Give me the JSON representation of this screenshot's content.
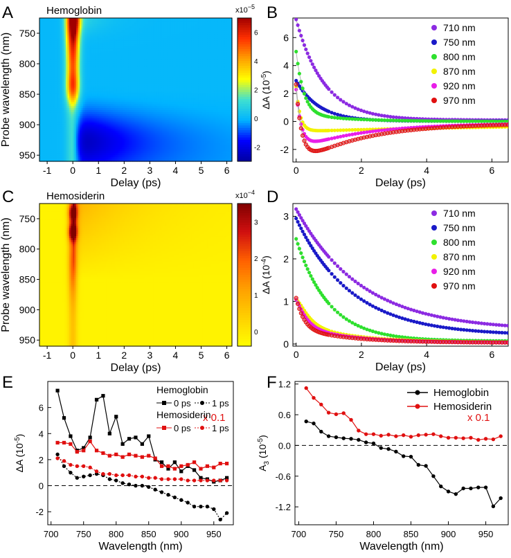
{
  "figure": {
    "panel_letters": [
      "A",
      "B",
      "C",
      "D",
      "E",
      "F"
    ]
  },
  "chart_data": [
    {
      "panel": "A",
      "type": "heatmap",
      "title": "Hemoglobin",
      "xlabel": "Delay (ps)",
      "ylabel": "Probe wavelength (nm)",
      "xlim": [
        -1.3,
        6.2
      ],
      "ylim": [
        960,
        725
      ],
      "xticks": [
        "-1",
        "0",
        "1",
        "2",
        "3",
        "4",
        "5",
        "6"
      ],
      "yticks": [
        "750",
        "800",
        "850",
        "900",
        "950"
      ],
      "colorbar": {
        "exponent_label": "x10",
        "exponent_power": "−5",
        "ticks": [
          "6",
          "4",
          "2",
          "0",
          "-2"
        ],
        "range": [
          -3.0,
          7.0
        ],
        "colors": [
          "#0000a0",
          "#0000ff",
          "#00b4ff",
          "#40e0d0",
          "#ffff00",
          "#ffa000",
          "#ff3000",
          "#a00000"
        ]
      }
    },
    {
      "panel": "B",
      "type": "scatter",
      "title": "",
      "xlabel": "Delay (ps)",
      "ylabel": "ΔA",
      "yunit": "(10",
      "yunit_power": "-5",
      "xlim": [
        -0.1,
        6.5
      ],
      "ylim": [
        -2.9,
        7.4
      ],
      "xticks": [
        0,
        2,
        4,
        6
      ],
      "yticks": [
        -2,
        0,
        2,
        4,
        6
      ],
      "series": [
        {
          "name": "710 nm",
          "color": "#8c2be2",
          "model": {
            "A1": 7.2,
            "tau1": 0.85,
            "A2": 0,
            "tau2": 1,
            "c": 0.1
          }
        },
        {
          "name": "750 nm",
          "color": "#1a1ac8",
          "model": {
            "A1": 2.9,
            "tau1": 0.7,
            "A2": 0,
            "tau2": 1,
            "c": 0.02
          }
        },
        {
          "name": "800 nm",
          "color": "#2ee02e",
          "model": {
            "A1": 5.0,
            "tau1": 0.22,
            "A2": 0.55,
            "tau2": 1.5,
            "c": 0
          }
        },
        {
          "name": "870 nm",
          "color": "#f2f200",
          "model": {
            "A1": 2.6,
            "tau1": 0.12,
            "A2": -0.6,
            "tau2": 8,
            "c": -0.12
          }
        },
        {
          "name": "920 nm",
          "color": "#e81ee8",
          "model": {
            "A1": 2.4,
            "tau1": 0.18,
            "A2": -1.9,
            "tau2": 2.0,
            "c": -0.12
          }
        },
        {
          "name": "970 nm",
          "color": "#e01010",
          "model": {
            "A1": 2.8,
            "tau1": 0.22,
            "A2": -3.0,
            "tau2": 1.9,
            "c": -0.15
          }
        }
      ]
    },
    {
      "panel": "C",
      "type": "heatmap",
      "title": "Hemosiderin",
      "xlabel": "Delay (ps)",
      "ylabel": "Probe wavelength (nm)",
      "xlim": [
        -1.3,
        6.2
      ],
      "ylim": [
        960,
        725
      ],
      "xticks": [
        "-1",
        "0",
        "1",
        "2",
        "3",
        "4",
        "5",
        "6"
      ],
      "yticks": [
        "750",
        "800",
        "850",
        "900",
        "950"
      ],
      "colorbar": {
        "exponent_label": "x10",
        "exponent_power": "−4",
        "ticks": [
          "3",
          "2",
          "1",
          "0"
        ],
        "range": [
          -0.4,
          3.5
        ],
        "colors": [
          "#ffff00",
          "#ffd000",
          "#ffa000",
          "#ff6000",
          "#d01010",
          "#800000"
        ]
      }
    },
    {
      "panel": "D",
      "type": "scatter",
      "title": "",
      "xlabel": "Delay (ps)",
      "ylabel": "ΔA",
      "yunit": "(10",
      "yunit_power": "-4",
      "xlim": [
        -0.1,
        6.5
      ],
      "ylim": [
        -0.05,
        3.3
      ],
      "xticks": [
        0,
        2,
        4,
        6
      ],
      "yticks": [
        0,
        1,
        2,
        3
      ],
      "series": [
        {
          "name": "710 nm",
          "color": "#8c2be2",
          "model": {
            "A1": 2.85,
            "tau1": 2.0,
            "A2": 0,
            "tau2": 1,
            "c": 0.32
          }
        },
        {
          "name": "750 nm",
          "color": "#1a1ac8",
          "model": {
            "A1": 2.75,
            "tau1": 1.7,
            "A2": 0,
            "tau2": 1,
            "c": 0.2
          }
        },
        {
          "name": "800 nm",
          "color": "#2ee02e",
          "model": {
            "A1": 2.4,
            "tau1": 1.0,
            "A2": 0,
            "tau2": 1,
            "c": 0.07
          }
        },
        {
          "name": "870 nm",
          "color": "#f2f200",
          "model": {
            "A1": 1.0,
            "tau1": 0.3,
            "A2": 0.45,
            "tau2": 1.6,
            "c": 0.04
          }
        },
        {
          "name": "920 nm",
          "color": "#e81ee8",
          "model": {
            "A1": 1.0,
            "tau1": 0.25,
            "A2": 0.4,
            "tau2": 1.5,
            "c": 0.04
          }
        },
        {
          "name": "970 nm",
          "color": "#e01010",
          "model": {
            "A1": 1.05,
            "tau1": 0.2,
            "A2": 0.35,
            "tau2": 1.5,
            "c": 0.03
          }
        }
      ]
    },
    {
      "panel": "E",
      "type": "line",
      "title": "",
      "xlabel": "Wavelength (nm)",
      "ylabel": "ΔA",
      "yunit": "(10",
      "yunit_power": "-5",
      "xlim": [
        695,
        980
      ],
      "ylim": [
        -3.0,
        8.0
      ],
      "xticks": [
        700,
        750,
        800,
        850,
        900,
        950
      ],
      "yticks": [
        -2,
        0,
        2,
        4,
        6
      ],
      "annotation": "x 0.1",
      "legend_groups": [
        "Hemoglobin",
        "Hemosiderin"
      ],
      "x": [
        710,
        720,
        730,
        740,
        750,
        760,
        770,
        780,
        790,
        800,
        810,
        820,
        830,
        840,
        850,
        860,
        870,
        880,
        890,
        900,
        910,
        920,
        930,
        940,
        950,
        960,
        970
      ],
      "series": [
        {
          "group": "Hemoglobin",
          "name": "0 ps",
          "color": "#000000",
          "marker": "square",
          "dash": "",
          "values": [
            7.3,
            5.2,
            3.8,
            2.7,
            2.9,
            3.7,
            6.6,
            6.9,
            4.0,
            5.3,
            3.2,
            3.6,
            3.7,
            3.2,
            3.8,
            2.0,
            1.8,
            1.3,
            1.8,
            1.1,
            1.5,
            1.2,
            0.6,
            0.5,
            0.3,
            0.4,
            0.6
          ]
        },
        {
          "group": "Hemoglobin",
          "name": "1 ps",
          "color": "#000000",
          "marker": "circle",
          "dash": "2,2",
          "values": [
            2.4,
            1.5,
            1.0,
            0.6,
            0.7,
            0.8,
            0.9,
            0.8,
            0.5,
            0.4,
            0.2,
            0.1,
            0.0,
            0.0,
            -0.1,
            -0.3,
            -0.5,
            -0.7,
            -0.9,
            -1.1,
            -1.3,
            -1.6,
            -1.6,
            -1.6,
            -1.8,
            -2.6,
            -2.1
          ]
        },
        {
          "group": "Hemosiderin",
          "name": "0 ps",
          "color": "#e01010",
          "marker": "square",
          "dash": "",
          "values": [
            3.3,
            3.3,
            3.2,
            2.6,
            2.7,
            3.4,
            2.7,
            2.5,
            2.3,
            2.4,
            2.2,
            2.4,
            2.3,
            2.2,
            2.3,
            2.1,
            1.5,
            1.5,
            1.3,
            1.5,
            1.6,
            1.8,
            1.3,
            1.5,
            1.4,
            1.7,
            1.7
          ]
        },
        {
          "group": "Hemosiderin",
          "name": "1 ps",
          "color": "#e01010",
          "marker": "circle",
          "dash": "2,2",
          "values": [
            2.1,
            1.9,
            1.6,
            1.5,
            1.5,
            1.4,
            1.1,
            0.9,
            0.9,
            0.8,
            0.8,
            0.8,
            0.7,
            0.7,
            0.6,
            0.6,
            0.5,
            0.5,
            0.5,
            0.5,
            0.4,
            0.4,
            0.4,
            0.4,
            0.4,
            0.4,
            0.4
          ]
        }
      ]
    },
    {
      "panel": "F",
      "type": "line",
      "title": "",
      "xlabel": "Wavelength (nm)",
      "ylabel": "A",
      "ylabel_sub": "3",
      "yunit": "(10",
      "yunit_power": "-5",
      "xlim": [
        695,
        980
      ],
      "ylim": [
        -1.55,
        1.25
      ],
      "xticks": [
        700,
        750,
        800,
        850,
        900,
        950
      ],
      "yticks": [
        "-1.2",
        "-0.6",
        "0.0",
        "0.6",
        "1.2"
      ],
      "annotation": "x 0.1",
      "x": [
        710,
        720,
        730,
        740,
        750,
        760,
        770,
        780,
        790,
        800,
        810,
        820,
        830,
        840,
        850,
        860,
        870,
        880,
        890,
        900,
        910,
        920,
        930,
        940,
        950,
        960,
        970
      ],
      "series": [
        {
          "name": "Hemoglobin",
          "color": "#000000",
          "values": [
            0.47,
            0.43,
            0.27,
            0.18,
            0.16,
            0.14,
            0.13,
            0.11,
            0.06,
            0.04,
            -0.05,
            -0.07,
            -0.12,
            -0.21,
            -0.22,
            -0.38,
            -0.4,
            -0.6,
            -0.8,
            -0.9,
            -0.95,
            -0.84,
            -0.84,
            -0.82,
            -0.82,
            -1.19,
            -1.03
          ]
        },
        {
          "name": "Hemosiderin",
          "color": "#e01010",
          "values": [
            1.12,
            0.93,
            0.8,
            0.64,
            0.61,
            0.63,
            0.5,
            0.29,
            0.22,
            0.22,
            0.19,
            0.21,
            0.18,
            0.2,
            0.17,
            0.2,
            0.21,
            0.22,
            0.18,
            0.15,
            0.15,
            0.14,
            0.15,
            0.11,
            0.13,
            0.12,
            0.18
          ]
        }
      ]
    }
  ]
}
